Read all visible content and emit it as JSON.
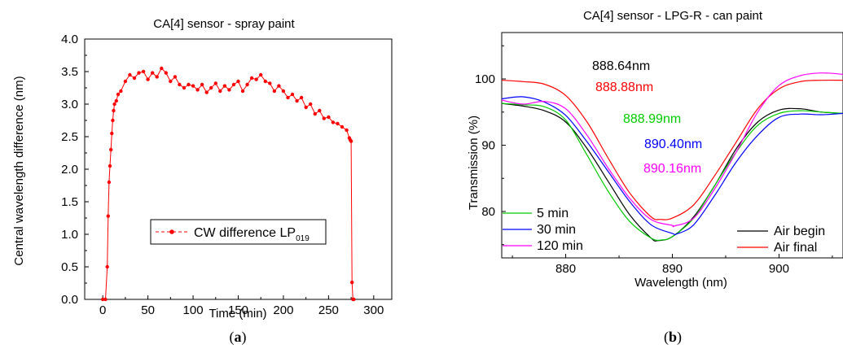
{
  "panels": {
    "a": {
      "prefix": "(",
      "letter": "a",
      "suffix": ")"
    },
    "b": {
      "prefix": "(",
      "letter": "b",
      "suffix": ")"
    }
  },
  "chart_data": [
    {
      "type": "line",
      "title": "CA[4] sensor - spray paint",
      "xlabel": "Time (min)",
      "ylabel": "Central wavelength difference (nm)",
      "xlim": [
        -20,
        320
      ],
      "ylim": [
        0.0,
        4.0
      ],
      "xticks": [
        0,
        50,
        100,
        150,
        200,
        250,
        300
      ],
      "yticks": [
        "0.0",
        "0.5",
        "1.0",
        "1.5",
        "2.0",
        "2.5",
        "3.0",
        "3.5",
        "4.0"
      ],
      "legend": {
        "position": "lower-center",
        "entry_main": "CW difference LP",
        "entry_sub": "019"
      },
      "series": [
        {
          "name": "CW difference LP019",
          "color": "#ff0000",
          "marker": "circle",
          "x": [
            0,
            3,
            5,
            6,
            7,
            8,
            9,
            10,
            11,
            12,
            13,
            15,
            17,
            20,
            25,
            30,
            35,
            40,
            45,
            50,
            55,
            60,
            65,
            70,
            75,
            80,
            85,
            90,
            95,
            100,
            105,
            110,
            115,
            120,
            125,
            130,
            135,
            140,
            145,
            150,
            155,
            160,
            165,
            170,
            175,
            180,
            185,
            190,
            195,
            200,
            205,
            210,
            215,
            220,
            225,
            230,
            235,
            240,
            245,
            250,
            255,
            260,
            265,
            270,
            273,
            274,
            275,
            276,
            277,
            278
          ],
          "y": [
            0.0,
            0.0,
            0.5,
            1.28,
            1.8,
            2.05,
            2.3,
            2.55,
            2.75,
            2.9,
            3.0,
            3.05,
            3.15,
            3.2,
            3.35,
            3.45,
            3.4,
            3.48,
            3.5,
            3.38,
            3.48,
            3.42,
            3.55,
            3.48,
            3.35,
            3.42,
            3.3,
            3.25,
            3.3,
            3.28,
            3.22,
            3.3,
            3.18,
            3.25,
            3.32,
            3.2,
            3.28,
            3.22,
            3.3,
            3.35,
            3.2,
            3.3,
            3.4,
            3.38,
            3.45,
            3.35,
            3.32,
            3.2,
            3.28,
            3.2,
            3.1,
            3.15,
            3.05,
            3.1,
            2.95,
            3.0,
            2.85,
            2.9,
            2.78,
            2.8,
            2.72,
            2.7,
            2.65,
            2.6,
            2.48,
            2.45,
            2.43,
            0.26,
            0.0,
            0.0
          ]
        }
      ]
    },
    {
      "type": "line",
      "title": "CA[4] sensor - LPG-R - can paint",
      "xlabel": "Wavelength (nm)",
      "ylabel": "Transmission (%)",
      "xlim": [
        874,
        906
      ],
      "ylim": [
        73,
        107
      ],
      "xticks": [
        880,
        890,
        900
      ],
      "yticks": [
        80,
        90,
        100
      ],
      "legend_left": {
        "position": "lower-left",
        "entries": [
          "5 min",
          "30 min",
          "120 min"
        ]
      },
      "legend_right": {
        "position": "lower-right",
        "entries": [
          "Air begin",
          "Air final"
        ]
      },
      "annotations": [
        {
          "text": "888.64nm",
          "color": "#000000"
        },
        {
          "text": "888.88nm",
          "color": "#ff0000"
        },
        {
          "text": "888.99nm",
          "color": "#00cc00"
        },
        {
          "text": "890.40nm",
          "color": "#0000ff"
        },
        {
          "text": "890.16nm",
          "color": "#ff00ff"
        }
      ],
      "series": [
        {
          "name": "Air begin",
          "color": "#000000",
          "x": [
            874,
            876,
            878,
            880,
            882,
            884,
            886,
            888,
            888.64,
            890,
            892,
            894,
            896,
            898,
            900,
            902,
            904,
            906
          ],
          "y": [
            96.3,
            95.9,
            95.2,
            93.5,
            89.5,
            84.5,
            79.5,
            76.0,
            75.6,
            76.2,
            79.2,
            84.0,
            89.5,
            93.5,
            95.3,
            95.5,
            95.0,
            94.8
          ]
        },
        {
          "name": "Air final",
          "color": "#ff0000",
          "x": [
            874,
            876,
            878,
            880,
            882,
            884,
            886,
            888,
            888.88,
            890,
            892,
            894,
            896,
            898,
            900,
            902,
            904,
            906
          ],
          "y": [
            99.8,
            99.6,
            99.2,
            97.5,
            93.5,
            88.0,
            82.8,
            79.2,
            78.8,
            79.0,
            81.0,
            85.5,
            90.5,
            95.5,
            98.5,
            99.6,
            99.8,
            99.8
          ]
        },
        {
          "name": "5 min",
          "color": "#00cc00",
          "x": [
            874,
            876,
            878,
            880,
            882,
            884,
            886,
            888,
            888.99,
            890,
            892,
            894,
            896,
            898,
            900,
            902,
            904,
            906
          ],
          "y": [
            96.3,
            96.1,
            95.8,
            93.8,
            88.5,
            83.0,
            78.5,
            76.0,
            75.7,
            76.2,
            79.0,
            84.0,
            89.0,
            93.0,
            94.8,
            95.2,
            95.0,
            94.8
          ]
        },
        {
          "name": "30 min",
          "color": "#0000ff",
          "x": [
            874,
            876,
            878,
            880,
            882,
            884,
            886,
            888,
            890,
            890.4,
            892,
            894,
            896,
            898,
            900,
            902,
            904,
            906
          ],
          "y": [
            97.0,
            97.3,
            96.5,
            94.5,
            90.5,
            86.0,
            81.5,
            78.0,
            76.7,
            76.6,
            78.0,
            82.5,
            87.5,
            91.5,
            94.2,
            94.7,
            94.6,
            94.8
          ]
        },
        {
          "name": "120 min",
          "color": "#ff00ff",
          "x": [
            874,
            876,
            878,
            880,
            882,
            884,
            886,
            888,
            890,
            890.16,
            892,
            894,
            896,
            898,
            900,
            902,
            904,
            906
          ],
          "y": [
            96.8,
            96.2,
            96.6,
            95.5,
            91.5,
            86.5,
            82.0,
            78.8,
            77.9,
            77.8,
            79.0,
            83.5,
            89.0,
            95.0,
            99.0,
            100.5,
            100.9,
            100.7
          ]
        }
      ]
    }
  ]
}
